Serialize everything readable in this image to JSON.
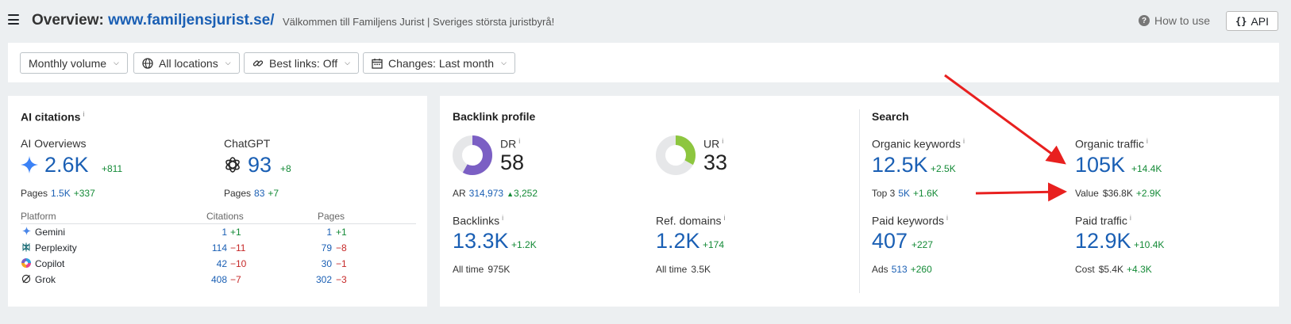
{
  "header": {
    "title_prefix": "Overview:",
    "domain": "www.familjensjurist.se/",
    "subtitle": "Välkommen till Familjens Jurist | Sveriges största juristbyrå!",
    "how_to_use": "How to use",
    "api_label": "API"
  },
  "filters": [
    {
      "label": "Monthly volume",
      "icon": "none"
    },
    {
      "label": "All locations",
      "icon": "globe-icon"
    },
    {
      "label": "Best links: Off",
      "icon": "link-icon"
    },
    {
      "label": "Changes: Last month",
      "icon": "calendar-icon"
    }
  ],
  "ai_citations": {
    "title": "AI citations",
    "info": "i",
    "overviews": {
      "label": "AI Overviews",
      "value": "2.6K",
      "delta": "+811",
      "pages_label": "Pages",
      "pages_value": "1.5K",
      "pages_delta": "+337"
    },
    "chatgpt": {
      "label": "ChatGPT",
      "value": "93",
      "delta": "+8",
      "pages_label": "Pages",
      "pages_value": "83",
      "pages_delta": "+7"
    },
    "table": {
      "headers": [
        "Platform",
        "Citations",
        "Pages"
      ],
      "rows": [
        {
          "platform": "Gemini",
          "citations": "1",
          "cit_delta": "+1",
          "cit_dir": "up",
          "pages": "1",
          "pages_delta": "+1",
          "pages_dir": "up"
        },
        {
          "platform": "Perplexity",
          "citations": "114",
          "cit_delta": "−11",
          "cit_dir": "down",
          "pages": "79",
          "pages_delta": "−8",
          "pages_dir": "down"
        },
        {
          "platform": "Copilot",
          "citations": "42",
          "cit_delta": "−10",
          "cit_dir": "down",
          "pages": "30",
          "pages_delta": "−1",
          "pages_dir": "down"
        },
        {
          "platform": "Grok",
          "citations": "408",
          "cit_delta": "−7",
          "cit_dir": "down",
          "pages": "302",
          "pages_delta": "−3",
          "pages_dir": "down"
        }
      ]
    }
  },
  "backlink_profile": {
    "title": "Backlink profile",
    "dr": {
      "label": "DR",
      "info": "i",
      "value": "58",
      "ring_fraction": 0.58,
      "color": "#7b5fc4"
    },
    "ur": {
      "label": "UR",
      "info": "i",
      "value": "33",
      "ring_fraction": 0.33,
      "color": "#8dc63f"
    },
    "ar": {
      "label": "AR",
      "value": "314,973",
      "delta": "3,252"
    },
    "backlinks": {
      "label": "Backlinks",
      "info": "i",
      "value": "13.3K",
      "delta": "+1.2K",
      "sub_label": "All time",
      "sub_value": "975K"
    },
    "ref_domains": {
      "label": "Ref. domains",
      "info": "i",
      "value": "1.2K",
      "delta": "+174",
      "sub_label": "All time",
      "sub_value": "3.5K"
    }
  },
  "search": {
    "title": "Search",
    "organic_keywords": {
      "label": "Organic keywords",
      "info": "i",
      "value": "12.5K",
      "delta": "+2.5K",
      "sub_label": "Top 3",
      "sub_value": "5K",
      "sub_delta": "+1.6K"
    },
    "organic_traffic": {
      "label": "Organic traffic",
      "info": "i",
      "value": "105K",
      "delta": "+14.4K",
      "sub_label": "Value",
      "sub_value": "$36.8K",
      "sub_delta": "+2.9K"
    },
    "paid_keywords": {
      "label": "Paid keywords",
      "info": "i",
      "value": "407",
      "delta": "+227",
      "sub_label": "Ads",
      "sub_value": "513",
      "sub_delta": "+260"
    },
    "paid_traffic": {
      "label": "Paid traffic",
      "info": "i",
      "value": "12.9K",
      "delta": "+10.4K",
      "sub_label": "Cost",
      "sub_value": "$5.4K",
      "sub_delta": "+4.3K"
    }
  },
  "colors": {
    "accent_blue": "#1a5fb4",
    "positive": "#138a36",
    "negative": "#c62828",
    "annotation_arrow": "#e8201f"
  }
}
